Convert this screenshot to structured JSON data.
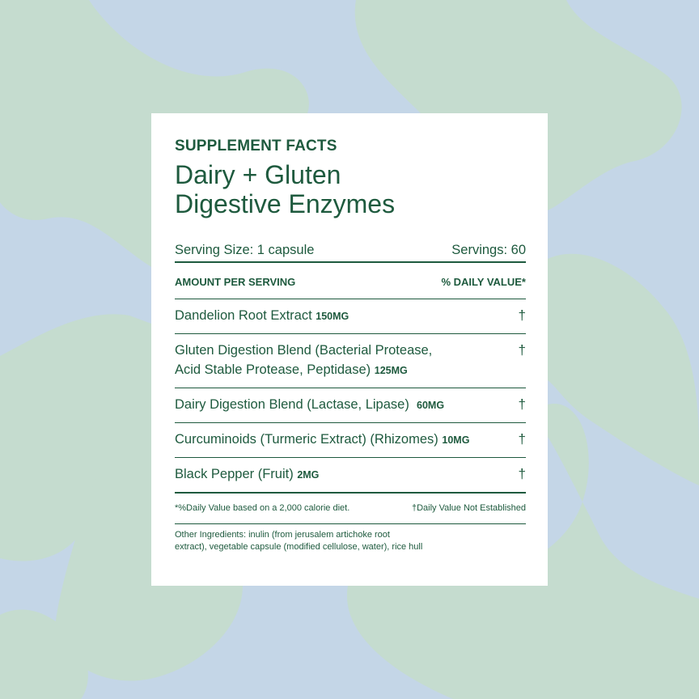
{
  "colors": {
    "background": "#c4d6e7",
    "blobs": "#c5dccf",
    "text": "#1e5a3e",
    "card": "#ffffff"
  },
  "label": {
    "kicker": "SUPPLEMENT FACTS",
    "title_line1": "Dairy + Gluten",
    "title_line2": "Digestive Enzymes",
    "serving_size": "Serving Size: 1 capsule",
    "servings": "Servings: 60",
    "amount_header": "AMOUNT PER SERVING",
    "dv_header": "% DAILY VALUE*",
    "items": [
      {
        "name": "Dandelion Root Extract",
        "amount": "150MG",
        "dv": "†"
      },
      {
        "name": "Gluten Digestion Blend (Bacterial Protease,",
        "name2": "Acid Stable Protease, Peptidase)",
        "amount": "125MG",
        "dv": "†"
      },
      {
        "name": "Dairy Digestion Blend (Lactase, Lipase)",
        "amount": "60MG",
        "dv": "†"
      },
      {
        "name": "Curcuminoids (Turmeric Extract) (Rhizomes)",
        "amount": "10MG",
        "dv": "†"
      },
      {
        "name": "Black Pepper (Fruit)",
        "amount": "2MG",
        "dv": "†"
      }
    ],
    "footnote_left": "*%Daily Value based on a 2,000 calorie diet.",
    "footnote_right": "†Daily Value Not Established",
    "other_line1": "Other Ingredients: inulin (from jerusalem artichoke root",
    "other_line2": "extract), vegetable capsule (modified cellulose, water), rice hull"
  }
}
